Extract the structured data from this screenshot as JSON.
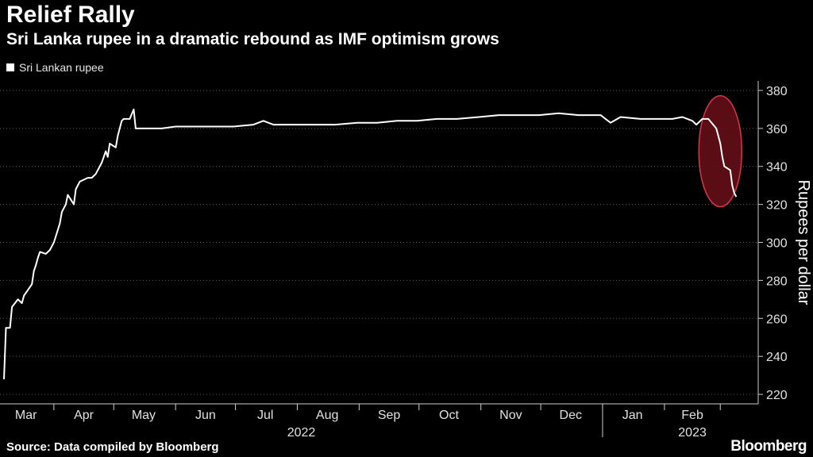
{
  "header": {
    "title": "Relief Rally",
    "subtitle": "Sri Lanka rupee in a dramatic rebound as IMF optimism grows"
  },
  "footer": {
    "source": "Source: Data compiled by Bloomberg",
    "brand": "Bloomberg"
  },
  "colors": {
    "background": "#000000",
    "line": "#ffffff",
    "highlight_fill": "#6b0f1a",
    "highlight_stroke": "#d9364a"
  },
  "chart_data": {
    "type": "line",
    "title": "Relief Rally",
    "subtitle": "Sri Lanka rupee in a dramatic rebound as IMF optimism grows",
    "ylabel": "Rupees per dollar",
    "xlabel": "",
    "ylim": [
      215,
      385
    ],
    "yticks": [
      220,
      240,
      260,
      280,
      300,
      320,
      340,
      360,
      380
    ],
    "grid": true,
    "legend_placement": "top-left",
    "x_month_labels": [
      "Mar",
      "Apr",
      "May",
      "Jun",
      "Jul",
      "Aug",
      "Sep",
      "Oct",
      "Nov",
      "Dec",
      "Jan",
      "Feb"
    ],
    "x_year_labels": [
      "2022",
      "2023"
    ],
    "highlight": "ellipse around Feb 2023 drop",
    "series": [
      {
        "name": "Sri Lankan rupee",
        "points": [
          [
            "2022-03-07",
            228
          ],
          [
            "2022-03-08",
            255
          ],
          [
            "2022-03-10",
            255
          ],
          [
            "2022-03-11",
            266
          ],
          [
            "2022-03-14",
            270
          ],
          [
            "2022-03-16",
            268
          ],
          [
            "2022-03-17",
            272
          ],
          [
            "2022-03-19",
            275
          ],
          [
            "2022-03-21",
            278
          ],
          [
            "2022-03-22",
            285
          ],
          [
            "2022-03-23",
            288
          ],
          [
            "2022-03-24",
            292
          ],
          [
            "2022-03-25",
            295
          ],
          [
            "2022-03-28",
            294
          ],
          [
            "2022-03-30",
            296
          ],
          [
            "2022-04-01",
            300
          ],
          [
            "2022-04-04",
            310
          ],
          [
            "2022-04-05",
            316
          ],
          [
            "2022-04-07",
            320
          ],
          [
            "2022-04-08",
            325
          ],
          [
            "2022-04-11",
            320
          ],
          [
            "2022-04-12",
            328
          ],
          [
            "2022-04-14",
            332
          ],
          [
            "2022-04-18",
            334
          ],
          [
            "2022-04-20",
            334
          ],
          [
            "2022-04-22",
            336
          ],
          [
            "2022-04-25",
            342
          ],
          [
            "2022-04-27",
            348
          ],
          [
            "2022-04-28",
            345
          ],
          [
            "2022-04-29",
            352
          ],
          [
            "2022-05-02",
            350
          ],
          [
            "2022-05-03",
            356
          ],
          [
            "2022-05-04",
            360
          ],
          [
            "2022-05-05",
            364
          ],
          [
            "2022-05-06",
            365
          ],
          [
            "2022-05-09",
            365
          ],
          [
            "2022-05-11",
            370
          ],
          [
            "2022-05-12",
            360
          ],
          [
            "2022-05-16",
            360
          ],
          [
            "2022-05-20",
            360
          ],
          [
            "2022-05-25",
            360
          ],
          [
            "2022-06-01",
            361
          ],
          [
            "2022-06-15",
            361
          ],
          [
            "2022-06-30",
            361
          ],
          [
            "2022-07-10",
            362
          ],
          [
            "2022-07-15",
            364
          ],
          [
            "2022-07-20",
            362
          ],
          [
            "2022-07-31",
            362
          ],
          [
            "2022-08-10",
            362
          ],
          [
            "2022-08-20",
            362
          ],
          [
            "2022-08-31",
            363
          ],
          [
            "2022-09-10",
            363
          ],
          [
            "2022-09-20",
            364
          ],
          [
            "2022-09-30",
            364
          ],
          [
            "2022-10-10",
            365
          ],
          [
            "2022-10-20",
            365
          ],
          [
            "2022-10-31",
            366
          ],
          [
            "2022-11-10",
            367
          ],
          [
            "2022-11-20",
            367
          ],
          [
            "2022-11-30",
            367
          ],
          [
            "2022-12-10",
            368
          ],
          [
            "2022-12-20",
            367
          ],
          [
            "2022-12-31",
            367
          ],
          [
            "2023-01-05",
            363
          ],
          [
            "2023-01-10",
            366
          ],
          [
            "2023-01-20",
            365
          ],
          [
            "2023-01-31",
            365
          ],
          [
            "2023-02-05",
            365
          ],
          [
            "2023-02-10",
            366
          ],
          [
            "2023-02-15",
            364
          ],
          [
            "2023-02-17",
            362
          ],
          [
            "2023-02-20",
            365
          ],
          [
            "2023-02-23",
            365
          ],
          [
            "2023-02-27",
            360
          ],
          [
            "2023-03-01",
            352
          ],
          [
            "2023-03-02",
            345
          ],
          [
            "2023-03-03",
            340
          ],
          [
            "2023-03-06",
            338
          ],
          [
            "2023-03-07",
            330
          ],
          [
            "2023-03-08",
            326
          ],
          [
            "2023-03-09",
            324
          ]
        ]
      }
    ]
  }
}
